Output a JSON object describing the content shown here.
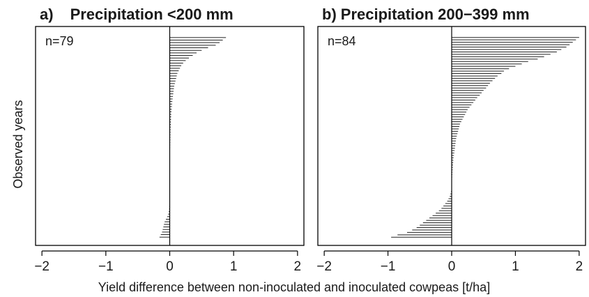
{
  "figure": {
    "ylabel": "Observed years",
    "xlabel": "Yield difference between non-inoculated and inoculated cowpeas [t/ha]"
  },
  "chart_data": [
    {
      "type": "bar",
      "orientation": "horizontal",
      "panel_label": "a)",
      "title": "Precipitation <200 mm",
      "annotation": "n=79",
      "xlim": [
        -2.1,
        2.1
      ],
      "x_ticks": [
        -2,
        -1,
        0,
        1,
        2
      ],
      "x_tick_labels": [
        "−2",
        "−1",
        "0",
        "1",
        "2"
      ],
      "grid": false,
      "sort": "descending",
      "values": [
        0.88,
        0.83,
        0.78,
        0.72,
        0.6,
        0.5,
        0.42,
        0.36,
        0.3,
        0.25,
        0.21,
        0.18,
        0.16,
        0.14,
        0.12,
        0.11,
        0.1,
        0.09,
        0.08,
        0.07,
        0.065,
        0.06,
        0.055,
        0.05,
        0.045,
        0.04,
        0.037,
        0.034,
        0.031,
        0.028,
        0.025,
        0.023,
        0.021,
        0.019,
        0.017,
        0.015,
        0.013,
        0.012,
        0.011,
        0.01,
        0.009,
        0.008,
        0.007,
        0.006,
        0.005,
        0.004,
        0.004,
        0.003,
        0.003,
        0.002,
        0.002,
        0.001,
        0.001,
        0.001,
        0.0,
        0.0,
        0.0,
        0.0,
        0.0,
        0.0,
        0.0,
        0.0,
        -0.001,
        -0.002,
        -0.003,
        -0.005,
        -0.007,
        -0.01,
        -0.015,
        -0.025,
        -0.04,
        -0.06,
        -0.08,
        -0.09,
        -0.1,
        -0.11,
        -0.12,
        -0.14,
        -0.16
      ]
    },
    {
      "type": "bar",
      "orientation": "horizontal",
      "panel_label": "b)",
      "title": "Precipitation 200−399 mm",
      "annotation": "n=84",
      "xlim": [
        -2.1,
        2.1
      ],
      "x_ticks": [
        -2,
        -1,
        0,
        1,
        2
      ],
      "x_tick_labels": [
        "−2",
        "−1",
        "0",
        "1",
        "2"
      ],
      "grid": false,
      "sort": "descending",
      "values": [
        2.0,
        1.95,
        1.9,
        1.85,
        1.8,
        1.72,
        1.65,
        1.55,
        1.45,
        1.35,
        1.2,
        1.1,
        1.0,
        0.9,
        0.82,
        0.78,
        0.72,
        0.68,
        0.64,
        0.6,
        0.57,
        0.54,
        0.5,
        0.47,
        0.44,
        0.4,
        0.37,
        0.34,
        0.31,
        0.28,
        0.25,
        0.23,
        0.21,
        0.19,
        0.17,
        0.15,
        0.13,
        0.12,
        0.11,
        0.1,
        0.09,
        0.08,
        0.07,
        0.065,
        0.06,
        0.055,
        0.05,
        0.045,
        0.04,
        0.035,
        0.03,
        0.027,
        0.024,
        0.021,
        0.018,
        0.015,
        0.012,
        0.01,
        0.008,
        0.006,
        0.004,
        0.002,
        0.0,
        -0.005,
        -0.01,
        -0.02,
        -0.03,
        -0.05,
        -0.07,
        -0.1,
        -0.13,
        -0.16,
        -0.2,
        -0.25,
        -0.3,
        -0.35,
        -0.4,
        -0.45,
        -0.5,
        -0.55,
        -0.62,
        -0.7,
        -0.85,
        -0.95
      ]
    }
  ]
}
